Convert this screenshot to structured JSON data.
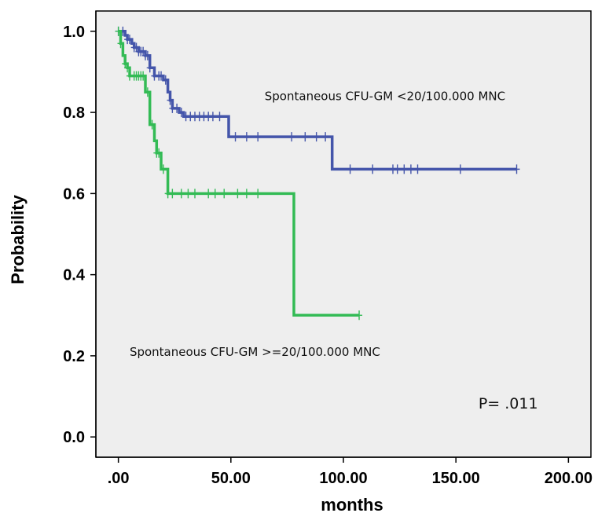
{
  "chart_data": {
    "type": "line",
    "title": "",
    "xlabel": "months",
    "ylabel": "Probability",
    "xlim": [
      -10,
      210
    ],
    "ylim": [
      -0.05,
      1.05
    ],
    "x_ticks": [
      0,
      50,
      100,
      150,
      200
    ],
    "x_tick_labels": [
      ".00",
      "50.00",
      "100.00",
      "150.00",
      "200.00"
    ],
    "y_ticks": [
      0,
      0.2,
      0.4,
      0.6,
      0.8,
      1.0
    ],
    "y_tick_labels": [
      "0.0",
      "0.2",
      "0.4",
      "0.6",
      "0.8",
      "1.0"
    ],
    "grid": false,
    "colors": {
      "background": "#eeeeee",
      "blue": "#4455aa",
      "green": "#33bb55"
    },
    "series": [
      {
        "key": "low",
        "color": "#4455aa",
        "steps": [
          [
            0,
            1.0
          ],
          [
            3,
            0.99
          ],
          [
            4,
            0.98
          ],
          [
            6,
            0.97
          ],
          [
            7,
            0.96
          ],
          [
            9,
            0.95
          ],
          [
            12,
            0.94
          ],
          [
            14,
            0.91
          ],
          [
            16,
            0.89
          ],
          [
            20,
            0.88
          ],
          [
            22,
            0.85
          ],
          [
            23,
            0.83
          ],
          [
            24,
            0.81
          ],
          [
            27,
            0.8
          ],
          [
            29,
            0.79
          ],
          [
            49,
            0.74
          ],
          [
            95,
            0.66
          ],
          [
            177,
            0.66
          ]
        ],
        "censored": [
          0,
          2,
          4,
          5,
          7,
          8,
          9,
          10,
          11,
          12,
          13,
          14,
          16,
          18,
          19,
          21,
          23,
          24,
          26,
          28,
          30,
          32,
          34,
          36,
          38,
          40,
          42,
          45,
          52,
          57,
          62,
          77,
          83,
          88,
          92,
          103,
          113,
          122,
          124,
          127,
          130,
          133,
          152,
          177
        ]
      },
      {
        "key": "high",
        "color": "#33bb55",
        "steps": [
          [
            0,
            1.0
          ],
          [
            1,
            0.97
          ],
          [
            2,
            0.94
          ],
          [
            3,
            0.92
          ],
          [
            4,
            0.91
          ],
          [
            5,
            0.89
          ],
          [
            12,
            0.85
          ],
          [
            14,
            0.77
          ],
          [
            16,
            0.73
          ],
          [
            17,
            0.7
          ],
          [
            19,
            0.66
          ],
          [
            22,
            0.6
          ],
          [
            78,
            0.6
          ],
          [
            78,
            0.3
          ],
          [
            107,
            0.3
          ]
        ],
        "censored": [
          0,
          1,
          3,
          4,
          5,
          7,
          8,
          9,
          10,
          11,
          13,
          15,
          17,
          18,
          20,
          22,
          24,
          28,
          31,
          34,
          40,
          43,
          47,
          53,
          57,
          62,
          107
        ]
      }
    ],
    "annotations": [
      {
        "text": "Spontaneous CFU-GM <20/100.000 MNC",
        "x": 65,
        "y": 0.83
      },
      {
        "text": "Spontaneous CFU-GM >=20/100.000 MNC",
        "x": 5,
        "y": 0.2
      },
      {
        "text": "P= .011",
        "x": 160,
        "y": 0.07
      }
    ]
  }
}
